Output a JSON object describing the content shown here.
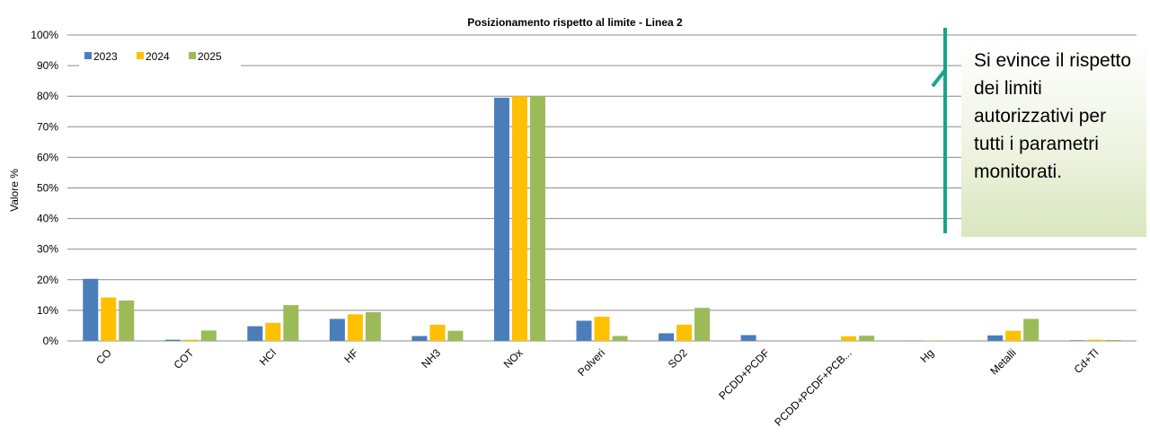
{
  "chart_data": {
    "type": "bar",
    "title": "Posizionamento rispetto al limite - Linea 2",
    "y_label": "Valore %",
    "categories": [
      "CO",
      "COT",
      "HCl",
      "HF",
      "NH3",
      "NOx",
      "Polveri",
      "SO2",
      "PCDD+PCDF",
      "PCDD+PCDF+PCB...",
      "Hg",
      "Metalli",
      "Cd+Tl"
    ],
    "series": [
      {
        "name": "2023",
        "color": "#4a7ebb",
        "values": [
          20.3,
          0.4,
          4.8,
          7.2,
          1.6,
          79.5,
          6.6,
          2.5,
          1.9,
          0,
          0.1,
          1.8,
          0.2
        ]
      },
      {
        "name": "2024",
        "color": "#ffc000",
        "values": [
          14.2,
          0.4,
          5.9,
          8.7,
          5.3,
          80,
          7.9,
          5.3,
          0,
          1.5,
          0.1,
          3.3,
          0.4
        ]
      },
      {
        "name": "2025",
        "color": "#9bbb59",
        "values": [
          13.2,
          3.4,
          11.7,
          9.4,
          3.3,
          80,
          1.6,
          10.8,
          0,
          1.7,
          0.1,
          7.2,
          0.3
        ]
      }
    ],
    "ylim": [
      0,
      100
    ],
    "yticks": [
      {
        "value": 0,
        "label": "0%"
      },
      {
        "value": 10,
        "label": "10%"
      },
      {
        "value": 20,
        "label": "20%"
      },
      {
        "value": 30,
        "label": "30%"
      },
      {
        "value": 40,
        "label": "40%"
      },
      {
        "value": 50,
        "label": "50%"
      },
      {
        "value": 60,
        "label": "60%"
      },
      {
        "value": 70,
        "label": "70%"
      },
      {
        "value": 80,
        "label": "80%"
      },
      {
        "value": 90,
        "label": "90%"
      },
      {
        "value": 100,
        "label": "100%"
      }
    ],
    "grid": true,
    "legend": "top-left"
  },
  "callout": {
    "text": "Si evince il rispetto dei limiti autorizzativi per tutti i parametri monitorati."
  }
}
